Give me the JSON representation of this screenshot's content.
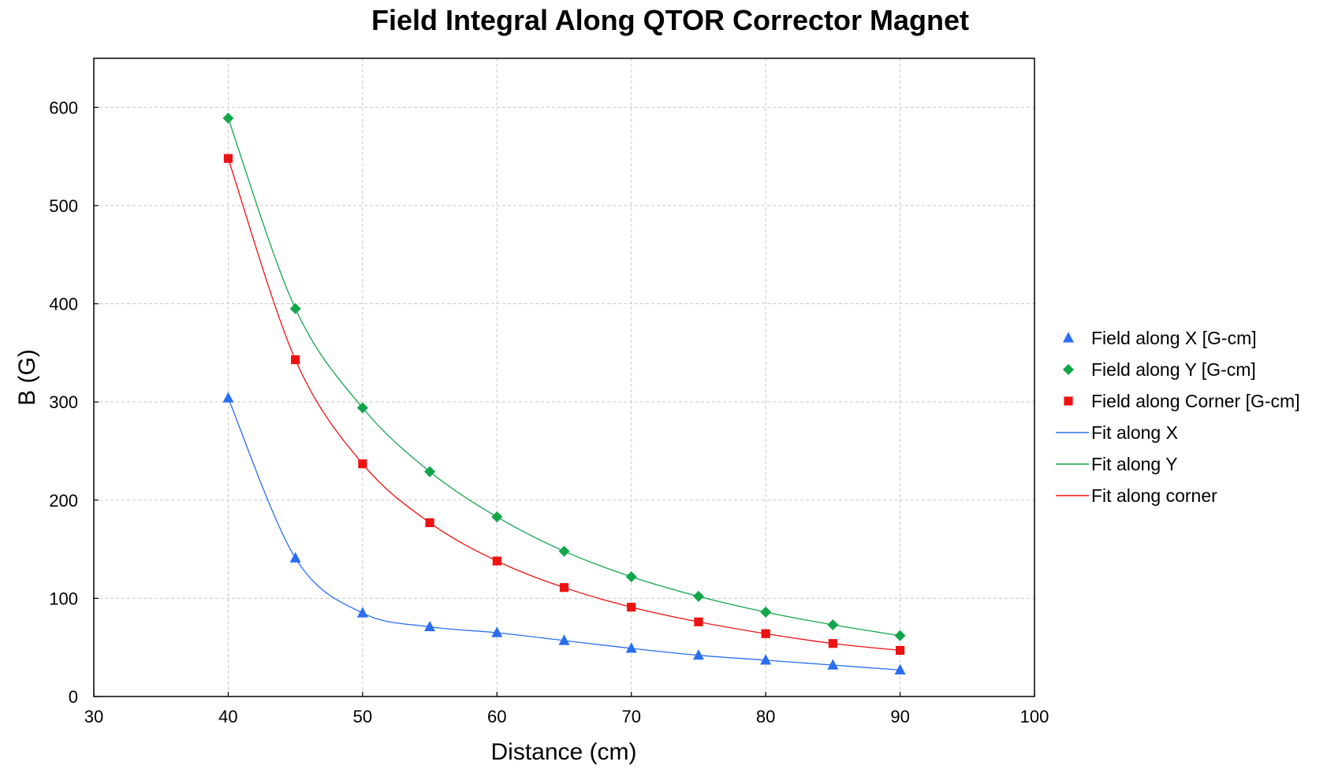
{
  "chart_data": {
    "type": "scatter",
    "title": "Field Integral Along QTOR Corrector Magnet",
    "xlabel": "Distance (cm)",
    "ylabel": "B (G)",
    "xlim": [
      30,
      100
    ],
    "ylim": [
      0,
      650
    ],
    "xticks": [
      30,
      40,
      50,
      60,
      70,
      80,
      90,
      100
    ],
    "yticks": [
      0,
      100,
      200,
      300,
      400,
      500,
      600
    ],
    "grid": true,
    "legend_position": "right",
    "x": [
      40,
      45,
      50,
      55,
      60,
      65,
      70,
      75,
      80,
      85,
      90
    ],
    "series": [
      {
        "name": "Field along X [G-cm]",
        "kind": "markers",
        "marker": "triangle",
        "color": "#2a6ef0",
        "values": [
          304,
          141,
          85,
          71,
          65,
          57,
          49,
          42,
          37,
          32,
          27
        ]
      },
      {
        "name": "Field along Y [G-cm]",
        "kind": "markers",
        "marker": "diamond",
        "color": "#12a64a",
        "values": [
          589,
          395,
          294,
          229,
          183,
          148,
          122,
          102,
          86,
          73,
          62
        ]
      },
      {
        "name": "Field along Corner [G-cm]",
        "kind": "markers",
        "marker": "square",
        "color": "#ee1111",
        "values": [
          548,
          343,
          237,
          177,
          138,
          111,
          91,
          76,
          64,
          54,
          47
        ]
      },
      {
        "name": "Fit along X",
        "kind": "line",
        "color": "#2a6ef0",
        "values": [
          304,
          141,
          85,
          71,
          65,
          57,
          49,
          42,
          37,
          32,
          27
        ]
      },
      {
        "name": "Fit along Y",
        "kind": "line",
        "color": "#12a64a",
        "values": [
          589,
          395,
          294,
          229,
          183,
          148,
          122,
          102,
          86,
          73,
          62
        ]
      },
      {
        "name": "Fit along corner",
        "kind": "line",
        "color": "#ee1111",
        "values": [
          548,
          343,
          237,
          177,
          138,
          111,
          91,
          76,
          64,
          54,
          47
        ]
      }
    ]
  }
}
